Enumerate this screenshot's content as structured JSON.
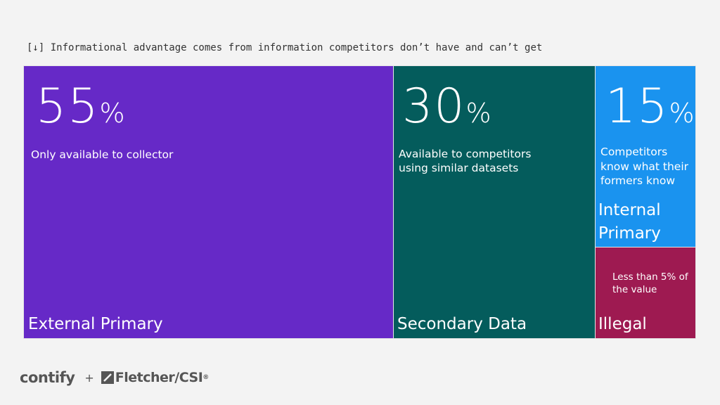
{
  "caption": "[↓] Informational advantage comes from information competitors don’t have and can’t get",
  "cells": {
    "external": {
      "value": "55",
      "sign": "%",
      "description": "Only available to collector",
      "label": "External Primary",
      "color": "#6629c7"
    },
    "secondary": {
      "value": "30",
      "sign": "%",
      "description_line1": "Available to competitors",
      "description_line2": "using similar datasets",
      "label": "Secondary Data",
      "color": "#045c5c"
    },
    "internal": {
      "value": "15",
      "sign": "%",
      "description_line1": "Competitors",
      "description_line2": "know what their",
      "description_line3": "formers know",
      "label_line1": "Internal",
      "label_line2": "Primary",
      "color": "#1a93ef"
    },
    "illegal": {
      "description_line1": "Less than 5% of",
      "description_line2": "the value",
      "label": "Illegal",
      "color": "#9e1a51"
    }
  },
  "footer": {
    "logo1": "contify",
    "plus": "+",
    "logo2": "Fletcher/CSI",
    "logo2_mark": "®"
  }
}
